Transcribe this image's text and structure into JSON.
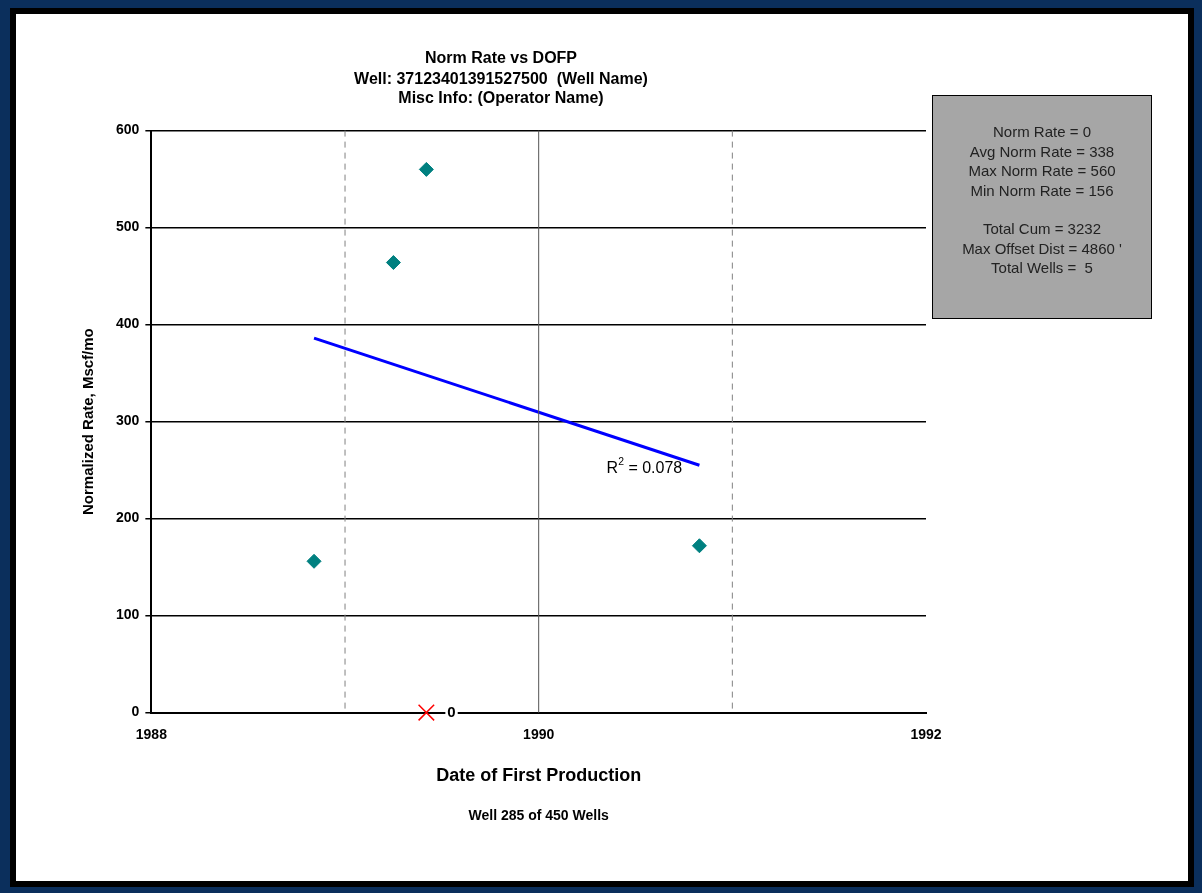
{
  "chart_data": [
    {
      "type": "scatter",
      "title": "Norm Rate vs DOFP",
      "subtitle": "Well: 37123401391527500  (Well Name)\nMisc Info: (Operator Name)",
      "xlabel": "Date of First Production",
      "ylabel": "Normalized Rate, Mscf/mo",
      "xlim": [
        1988,
        1992
      ],
      "xticks": [
        1988,
        1990,
        1992
      ],
      "ylim": [
        0,
        600
      ],
      "yticks": [
        0,
        100,
        200,
        300,
        400,
        500,
        600
      ],
      "grid": "y",
      "legend": false,
      "series": [
        {
          "type": "scatter",
          "color": "#008080",
          "marker": "diamond",
          "x": [
            1988.84,
            1989.25,
            1989.42,
            1990.83
          ],
          "values": [
            156,
            464,
            560,
            172
          ]
        },
        {
          "type": "line",
          "color": "#0000ff",
          "marker": "none",
          "line_style": "solid",
          "x": [
            1988.84,
            1990.83
          ],
          "values": [
            386,
            255
          ]
        },
        {
          "type": "scatter",
          "color": "#ff0000",
          "marker": "cross",
          "x": [
            1989.42
          ],
          "values": [
            0
          ],
          "value_labels": [
            "0"
          ]
        }
      ],
      "ref_lines": [
        {
          "axis": "x",
          "value": 1990,
          "color": "#555555",
          "line_style": "solid"
        },
        {
          "axis": "x",
          "value": 1989,
          "color": "#808080",
          "line_style": "dashed"
        },
        {
          "axis": "x",
          "value": 1991,
          "color": "#808080",
          "line_style": "dashed"
        }
      ],
      "annotations": [
        "R$^{2}$ = 0.078",
        "Well 285 of 450 Wells"
      ]
    },
    {
      "type": "other",
      "annotations": [
        "Norm Rate = 0\nAvg Norm Rate = 338\nMax Norm Rate = 560\nMin Norm Rate = 156",
        "Total Cum = 3232\nMax Offset Dist = 4860 '\nTotal Wells =  5"
      ]
    }
  ]
}
